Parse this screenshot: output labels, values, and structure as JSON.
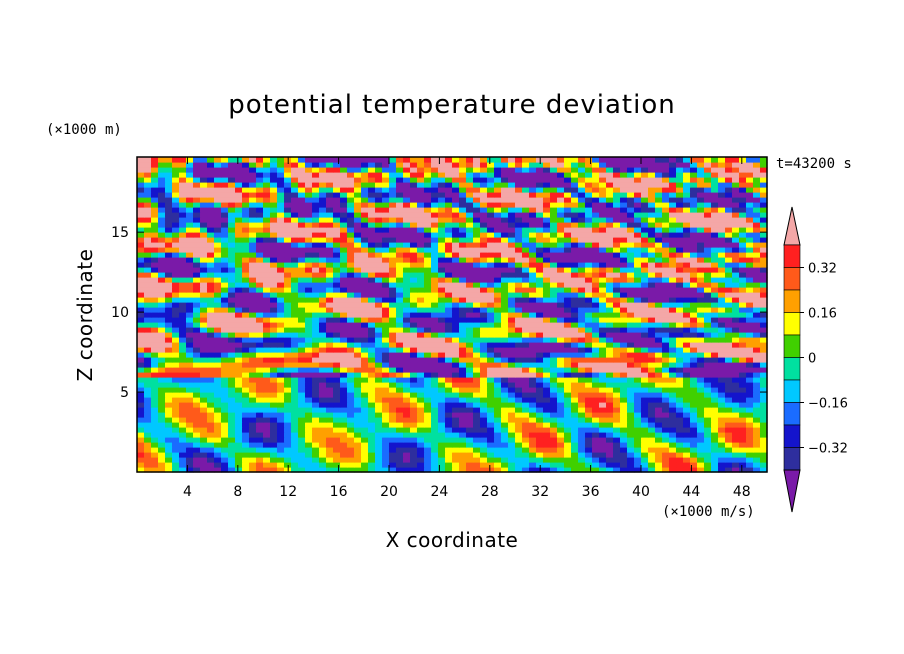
{
  "chart_data": {
    "type": "heatmap",
    "title": "potential temperature deviation",
    "xlabel": "X coordinate",
    "ylabel": "Z coordinate",
    "x_unit_label": "(×1000 m/s)",
    "y_unit_label": "(×1000 m)",
    "time_label": "t=43200 s",
    "xlim": [
      0,
      50
    ],
    "ylim": [
      0,
      19.7
    ],
    "x_ticks": [
      4,
      8,
      12,
      16,
      20,
      24,
      28,
      32,
      36,
      40,
      44,
      48
    ],
    "y_ticks": [
      5,
      10,
      15
    ],
    "colorbar": {
      "levels": [
        -0.4,
        -0.32,
        -0.24,
        -0.16,
        -0.08,
        0,
        0.08,
        0.16,
        0.24,
        0.32,
        0.4
      ],
      "tick_values": [
        0.32,
        0.16,
        0,
        -0.16,
        -0.32
      ],
      "tick_labels": [
        "0.32",
        "0.16",
        "0",
        "−0.16",
        "−0.32"
      ],
      "colors": [
        "#7a1aa8",
        "#2e2e9e",
        "#1414cc",
        "#1a6cff",
        "#00c8ff",
        "#00e0a0",
        "#40d000",
        "#ffff00",
        "#ffa000",
        "#ff5a1a",
        "#ff2020",
        "#f4a7a7"
      ]
    }
  }
}
